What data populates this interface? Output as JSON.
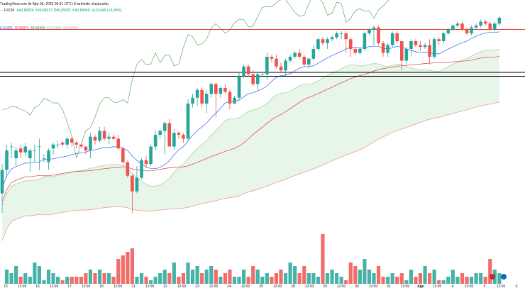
{
  "header": {
    "line1": "TradingView.com ile Ağu 05, 2025 09:31 UTC+3 tarihinde oluşturuldu",
    "symbol": "- · FXCM",
    "ohlc": [
      {
        "text": "A40,66924",
        "color": "#089981"
      },
      {
        "text": "Y40,68617",
        "color": "#089981"
      },
      {
        "text": "D40,65921",
        "color": "#089981"
      },
      {
        "text": "K40,68469",
        "color": "#089981"
      },
      {
        "text": "+0,01445 (+0,04%)",
        "color": "#089981"
      }
    ],
    "indicator": [
      {
        "text": "0,62401",
        "color": "#2962ff"
      },
      {
        "text": "40,59971",
        "color": "#f23645"
      },
      {
        "text": "40,68469",
        "color": "#089981"
      },
      {
        "text": "40,61186",
        "color": "#89c79f"
      },
      {
        "text": "40,53028",
        "color": "#f7a4ab"
      }
    ]
  },
  "colors": {
    "up": "#26a69a",
    "down": "#ef5350",
    "conversion": "#2962ff",
    "base": "#e53935",
    "lagging": "#43a047",
    "cloud_fill": "#e8f5e9",
    "span_a": "#a5d6a7",
    "span_b": "#ef9a9a",
    "hline_red": "#e53935",
    "hline_black": "#000000"
  },
  "chart_data": {
    "type": "candlestick",
    "ylim": [
      0,
      100
    ],
    "horizontal_levels": [
      {
        "value": 94,
        "color": "red"
      },
      {
        "value": 72,
        "color": "black"
      },
      {
        "value": 70,
        "color": "black"
      }
    ],
    "candles": [
      [
        0,
        10,
        22,
        0,
        25,
        -2
      ],
      [
        1,
        22,
        32,
        18,
        35,
        4
      ],
      [
        2,
        34,
        34,
        28,
        36,
        3
      ],
      [
        3,
        28,
        32,
        24,
        34,
        5
      ],
      [
        4,
        33,
        31,
        28,
        35,
        2
      ],
      [
        5,
        31,
        34,
        29,
        36,
        3
      ],
      [
        6,
        28,
        32,
        21,
        33,
        2
      ],
      [
        7,
        32,
        32,
        26,
        35,
        6
      ],
      [
        8,
        34,
        34,
        22,
        38,
        5
      ],
      [
        9,
        28,
        28,
        26,
        30,
        1
      ],
      [
        10,
        26,
        32,
        22,
        33,
        4
      ],
      [
        11,
        33,
        35,
        30,
        36,
        3
      ],
      [
        12,
        35,
        35,
        33,
        37,
        2
      ],
      [
        13,
        36,
        35,
        34,
        37,
        1
      ],
      [
        14,
        35,
        38,
        33,
        39,
        2
      ],
      [
        15,
        38,
        36,
        34,
        39,
        2
      ],
      [
        16,
        36,
        35,
        33,
        37,
        2
      ],
      [
        17,
        35,
        34,
        33,
        36,
        2
      ],
      [
        18,
        34,
        32,
        30,
        34,
        3
      ],
      [
        19,
        32,
        39,
        28,
        41,
        4
      ],
      [
        20,
        39,
        37,
        35,
        40,
        3
      ],
      [
        21,
        37,
        42,
        36,
        44,
        4
      ],
      [
        22,
        42,
        38,
        37,
        44,
        3
      ],
      [
        23,
        38,
        39,
        35,
        41,
        3
      ],
      [
        24,
        39,
        38,
        37,
        40,
        2
      ],
      [
        25,
        38,
        33,
        32,
        40,
        7
      ],
      [
        26,
        33,
        26,
        25,
        34,
        8
      ],
      [
        27,
        26,
        19,
        18,
        27,
        9
      ],
      [
        28,
        19,
        11,
        0,
        20,
        10
      ],
      [
        29,
        11,
        18,
        10,
        24,
        2
      ],
      [
        30,
        18,
        27,
        17,
        28,
        3
      ],
      [
        31,
        27,
        25,
        23,
        29,
        2
      ],
      [
        32,
        25,
        34,
        24,
        35,
        1
      ],
      [
        33,
        34,
        40,
        32,
        42,
        2
      ],
      [
        34,
        40,
        42,
        38,
        43,
        3
      ],
      [
        35,
        42,
        46,
        30,
        47,
        4
      ],
      [
        36,
        46,
        34,
        34,
        48,
        3
      ],
      [
        37,
        34,
        41,
        32,
        43,
        6
      ],
      [
        38,
        41,
        40,
        38,
        42,
        2
      ],
      [
        39,
        40,
        38,
        36,
        41,
        3
      ],
      [
        40,
        38,
        56,
        37,
        58,
        6
      ],
      [
        41,
        56,
        59,
        54,
        61,
        4
      ],
      [
        42,
        59,
        63,
        55,
        64,
        5
      ],
      [
        43,
        63,
        56,
        54,
        64,
        3
      ],
      [
        44,
        56,
        61,
        51,
        63,
        4
      ],
      [
        45,
        61,
        66,
        59,
        67,
        5
      ],
      [
        46,
        66,
        61,
        49,
        67,
        4
      ],
      [
        47,
        61,
        64,
        59,
        65,
        2
      ],
      [
        48,
        64,
        62,
        61,
        66,
        3
      ],
      [
        49,
        62,
        56,
        53,
        63,
        4
      ],
      [
        50,
        56,
        59,
        56,
        60,
        2
      ],
      [
        51,
        59,
        70,
        58,
        72,
        2
      ],
      [
        52,
        70,
        75,
        69,
        76,
        4
      ],
      [
        53,
        75,
        71,
        70,
        76,
        2
      ],
      [
        54,
        71,
        66,
        65,
        73,
        5
      ],
      [
        55,
        66,
        71,
        63,
        72,
        4
      ],
      [
        56,
        71,
        71,
        70,
        72,
        2
      ],
      [
        57,
        71,
        80,
        68,
        82,
        3
      ],
      [
        58,
        80,
        79,
        77,
        81,
        2
      ],
      [
        59,
        79,
        75,
        74,
        81,
        3
      ],
      [
        60,
        75,
        73,
        72,
        77,
        4
      ],
      [
        61,
        73,
        78,
        70,
        79,
        3
      ],
      [
        62,
        78,
        80,
        77,
        81,
        6
      ],
      [
        63,
        80,
        82,
        79,
        83,
        5
      ],
      [
        64,
        82,
        80,
        79,
        84,
        3
      ],
      [
        65,
        80,
        76,
        75,
        81,
        5
      ],
      [
        66,
        76,
        79,
        74,
        80,
        3
      ],
      [
        67,
        79,
        84,
        78,
        86,
        3
      ],
      [
        68,
        84,
        89,
        83,
        90,
        2
      ],
      [
        69,
        89,
        87,
        86,
        90,
        14
      ],
      [
        70,
        87,
        89,
        84,
        90,
        3
      ],
      [
        71,
        89,
        90,
        88,
        91,
        4
      ],
      [
        72,
        90,
        92,
        89,
        93,
        3
      ],
      [
        73,
        92,
        92,
        89,
        93,
        2
      ],
      [
        74,
        92,
        89,
        82,
        93,
        1
      ],
      [
        75,
        89,
        84,
        80,
        90,
        6
      ],
      [
        76,
        84,
        82,
        81,
        85,
        5
      ],
      [
        77,
        82,
        84,
        81,
        85,
        4
      ],
      [
        78,
        84,
        92,
        83,
        93,
        7
      ],
      [
        79,
        92,
        94,
        91,
        95,
        4
      ],
      [
        80,
        94,
        95,
        86,
        96,
        3
      ],
      [
        81,
        95,
        87,
        86,
        96,
        5
      ],
      [
        82,
        87,
        82,
        80,
        88,
        2
      ],
      [
        83,
        82,
        86,
        80,
        87,
        2
      ],
      [
        84,
        86,
        92,
        85,
        93,
        3
      ],
      [
        85,
        92,
        88,
        87,
        93,
        2
      ],
      [
        86,
        88,
        78,
        73,
        88,
        3
      ],
      [
        87,
        78,
        84,
        76,
        85,
        1
      ],
      [
        88,
        84,
        88,
        80,
        89,
        4
      ],
      [
        89,
        88,
        86,
        85,
        89,
        2
      ],
      [
        90,
        86,
        85,
        83,
        88,
        3
      ],
      [
        91,
        85,
        86,
        84,
        87,
        5
      ],
      [
        92,
        86,
        80,
        76,
        89,
        3
      ],
      [
        93,
        80,
        89,
        79,
        90,
        4
      ],
      [
        94,
        89,
        88,
        86,
        90,
        1
      ],
      [
        95,
        88,
        92,
        87,
        93,
        1
      ],
      [
        96,
        92,
        94,
        91,
        95,
        2
      ],
      [
        97,
        94,
        96,
        93,
        97,
        4
      ],
      [
        98,
        96,
        97,
        95,
        98,
        2
      ],
      [
        99,
        97,
        94,
        93,
        98,
        3
      ],
      [
        100,
        94,
        92,
        91,
        95,
        2
      ],
      [
        101,
        92,
        95,
        91,
        96,
        2
      ],
      [
        102,
        95,
        96,
        94,
        97,
        3
      ],
      [
        103,
        96,
        98,
        95,
        99,
        3
      ],
      [
        104,
        98,
        97,
        96,
        99,
        2
      ],
      [
        105,
        97,
        94,
        93,
        98,
        7
      ],
      [
        106,
        94,
        97,
        93,
        98,
        4
      ],
      [
        107,
        97,
        100,
        96,
        101,
        3
      ]
    ],
    "volume_ylim": [
      0,
      100
    ]
  },
  "x_axis": {
    "labels": [
      {
        "text": "15",
        "pos": 8,
        "bold": false
      },
      {
        "text": "12:00",
        "pos": 31,
        "bold": false
      },
      {
        "text": "16",
        "pos": 53,
        "bold": false
      },
      {
        "text": "12:00",
        "pos": 76,
        "bold": false
      },
      {
        "text": "17",
        "pos": 98,
        "bold": false
      },
      {
        "text": "12:00",
        "pos": 121,
        "bold": false
      },
      {
        "text": "18",
        "pos": 143,
        "bold": false
      },
      {
        "text": "12:00",
        "pos": 166,
        "bold": false
      },
      {
        "text": "21",
        "pos": 188,
        "bold": false
      },
      {
        "text": "12:00",
        "pos": 211,
        "bold": false
      },
      {
        "text": "22",
        "pos": 233,
        "bold": false
      },
      {
        "text": "12:00",
        "pos": 256,
        "bold": false
      },
      {
        "text": "23",
        "pos": 278,
        "bold": false
      },
      {
        "text": "12:00",
        "pos": 301,
        "bold": false
      },
      {
        "text": "24",
        "pos": 323,
        "bold": false
      },
      {
        "text": "12:00",
        "pos": 346,
        "bold": false
      },
      {
        "text": "25",
        "pos": 368,
        "bold": false
      },
      {
        "text": "12:00",
        "pos": 391,
        "bold": false
      },
      {
        "text": "28",
        "pos": 413,
        "bold": false
      },
      {
        "text": "12:00",
        "pos": 436,
        "bold": false
      },
      {
        "text": "29",
        "pos": 458,
        "bold": false
      },
      {
        "text": "12:00",
        "pos": 481,
        "bold": false
      },
      {
        "text": "30",
        "pos": 503,
        "bold": false
      },
      {
        "text": "12:00",
        "pos": 526,
        "bold": false
      },
      {
        "text": "31",
        "pos": 548,
        "bold": false
      },
      {
        "text": "12:00",
        "pos": 571,
        "bold": false
      },
      {
        "text": "Ağu",
        "pos": 593,
        "bold": true
      },
      {
        "text": "12:00",
        "pos": 616,
        "bold": false
      },
      {
        "text": "4",
        "pos": 638,
        "bold": false
      },
      {
        "text": "12:00",
        "pos": 661,
        "bold": false
      },
      {
        "text": "5",
        "pos": 683,
        "bold": false
      },
      {
        "text": "12:00",
        "pos": 706,
        "bold": false
      },
      {
        "text": "6",
        "pos": 728,
        "bold": false
      }
    ]
  },
  "flags": [
    {
      "name": "flag-1",
      "color": "#c62828"
    },
    {
      "name": "flag-2",
      "color": "#1565c0"
    }
  ]
}
